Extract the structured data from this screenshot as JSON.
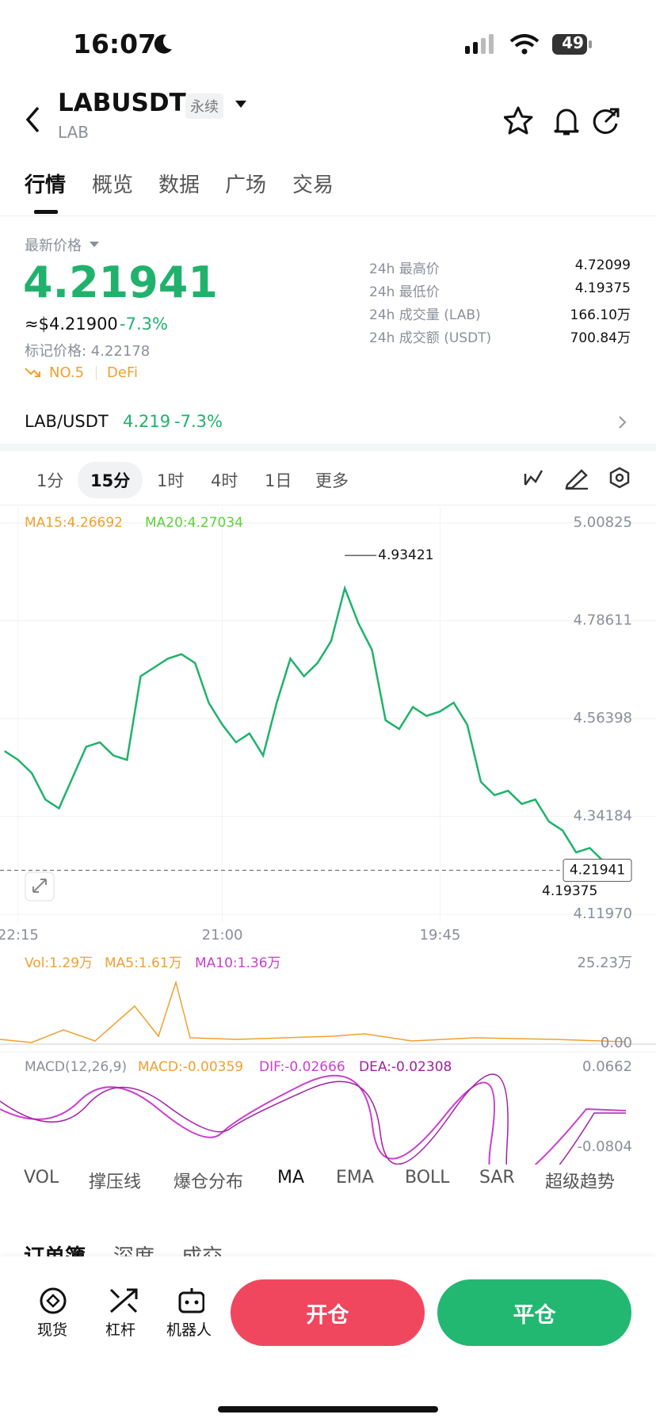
{
  "status_bar": {
    "time": "16:07",
    "battery": "49"
  },
  "header": {
    "symbol": "LABUSDT",
    "tag": "永续",
    "base": "LAB"
  },
  "tabs": [
    "行情",
    "概览",
    "数据",
    "广场",
    "交易"
  ],
  "ticker": {
    "label": "最新价格",
    "price": "4.21941",
    "usd": "≈$4.21900",
    "change": "-7.3%",
    "mark_price": "标记价格: 4.22178",
    "rank": "NO.5",
    "sector": "DeFi",
    "stats": [
      [
        "24h 最高价",
        "4.72099"
      ],
      [
        "24h 最低价",
        "4.19375"
      ],
      [
        "24h 成交量 (LAB)",
        "166.10万"
      ],
      [
        "24h 成交额 (USDT)",
        "700.84万"
      ]
    ]
  },
  "spot": {
    "pair": "LAB/USDT",
    "price": "4.219",
    "change": "-7.3%"
  },
  "timeframes": [
    "1分",
    "15分",
    "1时",
    "4时",
    "1日",
    "更多"
  ],
  "chart_data": {
    "type": "line",
    "ma_labels": [
      "MA15:4.26692",
      "MA20:4.27034"
    ],
    "categories": [
      null,
      "22:15",
      null,
      null,
      null,
      null,
      null,
      null,
      null,
      null,
      null,
      null,
      null,
      null,
      null,
      null,
      "21:00",
      null,
      null,
      null,
      null,
      null,
      null,
      null,
      null,
      null,
      null,
      null,
      null,
      null,
      null,
      null,
      "19:45",
      null,
      null,
      null,
      null,
      null,
      null,
      null,
      null,
      null,
      null,
      null,
      null,
      null
    ],
    "values": [
      4.49,
      4.47,
      4.44,
      4.38,
      4.36,
      4.43,
      4.5,
      4.51,
      4.48,
      4.47,
      4.66,
      4.68,
      4.7,
      4.71,
      4.69,
      4.6,
      4.55,
      4.51,
      4.53,
      4.48,
      4.6,
      4.7,
      4.66,
      4.69,
      4.74,
      4.86,
      4.78,
      4.72,
      4.56,
      4.54,
      4.59,
      4.57,
      4.58,
      4.6,
      4.55,
      4.42,
      4.39,
      4.4,
      4.37,
      4.38,
      4.33,
      4.31,
      4.26,
      4.27,
      4.24,
      4.22
    ],
    "color": "#20b26c",
    "ylim": [
      4.1197,
      5.00825
    ],
    "yticks": [
      5.00825,
      4.78611,
      4.56398,
      4.34184,
      {
        "value": 4.1197,
        "label": "4.11970"
      }
    ],
    "grid": true,
    "high": 4.93421,
    "low": 4.19375,
    "last": 4.21941
  },
  "volume_panel": {
    "legend": [
      "Vol:1.29万",
      "MA5:1.61万",
      "MA10:1.36万"
    ],
    "top_label": "25.23万",
    "bottom_label": "0.00"
  },
  "macd_panel": {
    "legend": [
      "MACD(12,26,9)",
      "MACD:-0.00359",
      "DIF:-0.02666",
      "DEA:-0.02308"
    ],
    "top_label": "0.0662",
    "bottom_label": "-0.0804"
  },
  "indicators": [
    "VOL",
    "撑压线",
    "爆仓分布",
    "MA",
    "EMA",
    "BOLL",
    "SAR",
    "超级趋势"
  ],
  "order_tabs": [
    "订单簿",
    "深度",
    "成交"
  ],
  "bottom_nav": [
    "现货",
    "杠杆",
    "机器人"
  ],
  "actions": {
    "open": "开仓",
    "close": "平仓"
  }
}
